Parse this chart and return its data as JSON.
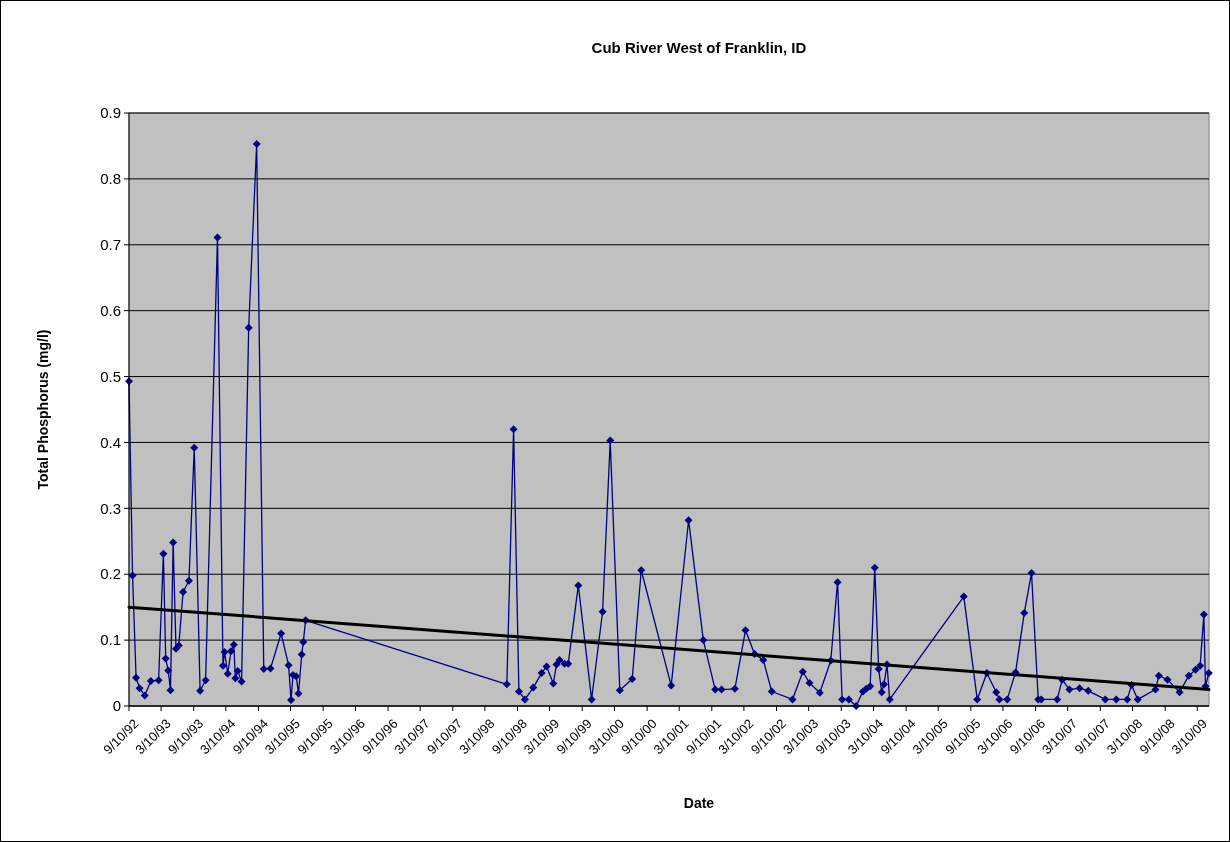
{
  "chart_data": {
    "type": "line",
    "title": "Cub River West of Franklin, ID",
    "xlabel": "Date",
    "ylabel": "Total Phosphorus (mg/l)",
    "xlim": [
      "1992-09-10",
      "2009-05-15"
    ],
    "ylim": [
      0,
      0.9
    ],
    "yticks": [
      0,
      0.1,
      0.2,
      0.3,
      0.4,
      0.5,
      0.6,
      0.7,
      0.8,
      0.9
    ],
    "xticks": [
      {
        "value": "1992-09-10",
        "label": "9/10/92"
      },
      {
        "value": "1993-03-10",
        "label": "3/10/93"
      },
      {
        "value": "1993-09-10",
        "label": "9/10/93"
      },
      {
        "value": "1994-03-10",
        "label": "3/10/94"
      },
      {
        "value": "1994-09-10",
        "label": "9/10/94"
      },
      {
        "value": "1995-03-10",
        "label": "3/10/95"
      },
      {
        "value": "1995-09-10",
        "label": "9/10/95"
      },
      {
        "value": "1996-03-10",
        "label": "3/10/96"
      },
      {
        "value": "1996-09-10",
        "label": "9/10/96"
      },
      {
        "value": "1997-03-10",
        "label": "3/10/97"
      },
      {
        "value": "1997-09-10",
        "label": "9/10/97"
      },
      {
        "value": "1998-03-10",
        "label": "3/10/98"
      },
      {
        "value": "1998-09-10",
        "label": "9/10/98"
      },
      {
        "value": "1999-03-10",
        "label": "3/10/99"
      },
      {
        "value": "1999-09-10",
        "label": "9/10/99"
      },
      {
        "value": "2000-03-10",
        "label": "3/10/00"
      },
      {
        "value": "2000-09-10",
        "label": "9/10/00"
      },
      {
        "value": "2001-03-10",
        "label": "3/10/01"
      },
      {
        "value": "2001-09-10",
        "label": "9/10/01"
      },
      {
        "value": "2002-03-10",
        "label": "3/10/02"
      },
      {
        "value": "2002-09-10",
        "label": "9/10/02"
      },
      {
        "value": "2003-03-10",
        "label": "3/10/03"
      },
      {
        "value": "2003-09-10",
        "label": "9/10/03"
      },
      {
        "value": "2004-03-10",
        "label": "3/10/04"
      },
      {
        "value": "2004-09-10",
        "label": "9/10/04"
      },
      {
        "value": "2005-03-10",
        "label": "3/10/05"
      },
      {
        "value": "2005-09-10",
        "label": "9/10/05"
      },
      {
        "value": "2006-03-10",
        "label": "3/10/06"
      },
      {
        "value": "2006-09-10",
        "label": "9/10/06"
      },
      {
        "value": "2007-03-10",
        "label": "3/10/07"
      },
      {
        "value": "2007-09-10",
        "label": "9/10/07"
      },
      {
        "value": "2008-03-10",
        "label": "3/10/08"
      },
      {
        "value": "2008-09-10",
        "label": "9/10/08"
      },
      {
        "value": "2009-03-10",
        "label": "3/10/09"
      }
    ],
    "grid": "y",
    "series": [
      {
        "color": "#000080",
        "marker": "diamond",
        "line_style": "solid",
        "x": [
          "1992-09-10",
          "1992-09-30",
          "1992-10-20",
          "1992-11-09",
          "1992-12-08",
          "1993-01-11",
          "1993-02-24",
          "1993-03-23",
          "1993-04-05",
          "1993-04-19",
          "1993-05-02",
          "1993-05-17",
          "1993-06-02",
          "1993-06-18",
          "1993-07-12",
          "1993-08-14",
          "1993-09-13",
          "1993-10-16",
          "1993-11-16",
          "1994-01-22",
          "1994-02-22",
          "1994-03-03",
          "1994-03-21",
          "1994-04-08",
          "1994-04-24",
          "1994-05-03",
          "1994-05-16",
          "1994-06-07",
          "1994-07-17",
          "1994-08-31",
          "1994-10-10",
          "1994-11-17",
          "1995-01-16",
          "1995-02-27",
          "1995-03-13",
          "1995-03-24",
          "1995-04-11",
          "1995-04-24",
          "1995-05-12",
          "1995-05-21",
          "1995-06-03",
          "1998-07-12",
          "1998-08-19",
          "1998-09-18",
          "1998-10-22",
          "1998-12-08",
          "1999-01-24",
          "1999-02-21",
          "1999-03-31",
          "1999-04-18",
          "1999-05-05",
          "1999-06-02",
          "1999-06-23",
          "1999-08-19",
          "1999-11-02",
          "2000-01-03",
          "2000-02-15",
          "2000-04-09",
          "2000-06-18",
          "2000-08-08",
          "2001-01-24",
          "2001-05-02",
          "2001-07-24",
          "2001-09-29",
          "2001-11-04",
          "2002-01-18",
          "2002-03-19",
          "2002-05-09",
          "2002-06-27",
          "2002-08-14",
          "2002-12-09",
          "2003-02-05",
          "2003-03-15",
          "2003-05-12",
          "2003-07-13",
          "2003-08-20",
          "2003-09-15",
          "2003-10-23",
          "2003-12-03",
          "2004-01-10",
          "2004-01-29",
          "2004-02-20",
          "2004-03-17",
          "2004-04-08",
          "2004-04-25",
          "2004-05-08",
          "2004-05-25",
          "2004-06-09",
          "2005-08-01",
          "2005-10-16",
          "2005-12-09",
          "2006-01-31",
          "2006-02-18",
          "2006-04-03",
          "2006-05-20",
          "2006-07-08",
          "2006-08-18",
          "2006-09-25",
          "2006-10-12",
          "2007-01-10",
          "2007-02-07",
          "2007-03-20",
          "2007-05-16",
          "2007-07-04",
          "2007-10-08",
          "2007-12-09",
          "2008-02-09",
          "2008-03-04",
          "2008-04-08",
          "2008-07-17",
          "2008-08-05",
          "2008-09-23",
          "2008-11-30",
          "2009-01-21",
          "2009-02-28",
          "2009-03-26",
          "2009-04-16",
          "2009-04-25",
          "2009-05-14"
        ],
        "values": [
          0.493,
          0.198,
          0.043,
          0.027,
          0.016,
          0.038,
          0.039,
          0.231,
          0.072,
          0.054,
          0.024,
          0.248,
          0.087,
          0.092,
          0.173,
          0.19,
          0.392,
          0.023,
          0.039,
          0.711,
          0.061,
          0.082,
          0.049,
          0.083,
          0.093,
          0.042,
          0.053,
          0.037,
          0.574,
          0.853,
          0.056,
          0.057,
          0.11,
          0.062,
          0.009,
          0.047,
          0.045,
          0.019,
          0.078,
          0.097,
          0.13,
          0.033,
          0.42,
          0.022,
          0.01,
          0.028,
          0.05,
          0.06,
          0.034,
          0.063,
          0.07,
          0.064,
          0.064,
          0.183,
          0.01,
          0.143,
          0.403,
          0.024,
          0.041,
          0.206,
          0.031,
          0.282,
          0.1,
          0.025,
          0.025,
          0.026,
          0.115,
          0.079,
          0.07,
          0.022,
          0.01,
          0.052,
          0.035,
          0.02,
          0.069,
          0.188,
          0.01,
          0.01,
          0,
          0.022,
          0.026,
          0.03,
          0.21,
          0.056,
          0.021,
          0.033,
          0.063,
          0.01,
          0.166,
          0.01,
          0.05,
          0.021,
          0.01,
          0.01,
          0.051,
          0.141,
          0.202,
          0.01,
          0.01,
          0.01,
          0.04,
          0.025,
          0.027,
          0.023,
          0.01,
          0.01,
          0.01,
          0.032,
          0.01,
          0.025,
          0.046,
          0.04,
          0.021,
          0.046,
          0.055,
          0.061,
          0.139,
          0.03,
          0.05
        ]
      },
      {
        "color": "#000000",
        "marker": "none",
        "line_style": "solid",
        "x": [
          "1992-09-10",
          "2009-05-15"
        ],
        "values": [
          0.15,
          0.025
        ]
      }
    ]
  }
}
